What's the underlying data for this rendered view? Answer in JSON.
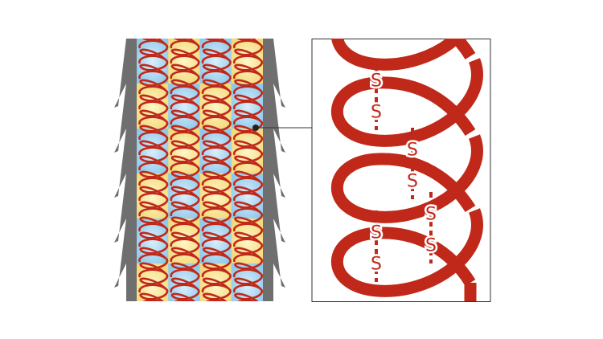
{
  "colors": {
    "helix": "#c0291a",
    "cell_blue": "#9fd2f0",
    "cell_yellow": "#f6e08a",
    "sheath": "#6f6f6f",
    "frame": "#333333"
  },
  "left_panel": {
    "columns": 4,
    "rows": 6,
    "pattern_first_cell": [
      "blue",
      "yellow",
      "blue",
      "yellow"
    ]
  },
  "detail_panel": {
    "bond_labels": [
      "S",
      "S",
      "S",
      "S",
      "S",
      "S",
      "S",
      "S"
    ]
  }
}
